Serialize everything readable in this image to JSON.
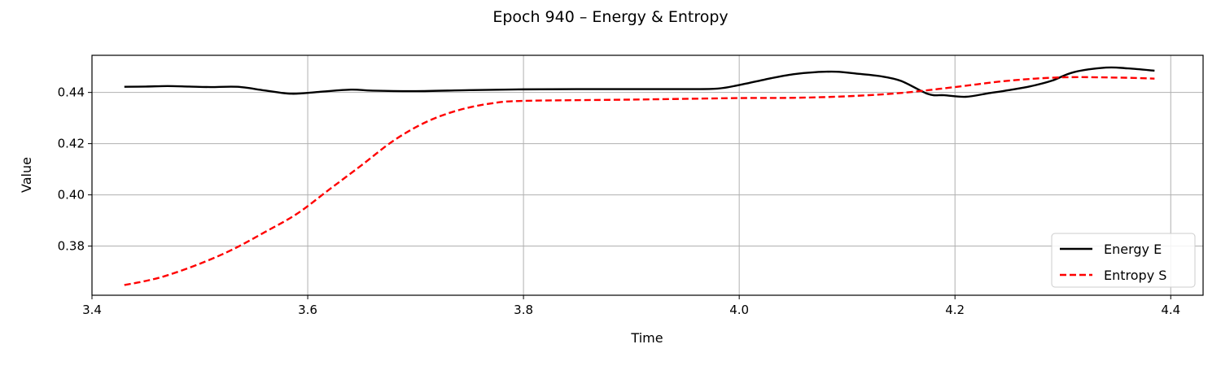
{
  "chart_data": {
    "type": "line",
    "title": "Epoch 940 – Energy & Entropy",
    "xlabel": "Time",
    "ylabel": "Value",
    "xlim": [
      3.4,
      4.43
    ],
    "ylim": [
      0.3608,
      0.4545
    ],
    "xticks": [
      3.4,
      3.6,
      3.8,
      4.0,
      4.2,
      4.4
    ],
    "xtick_labels": [
      "3.4",
      "3.6",
      "3.8",
      "4.0",
      "4.2",
      "4.4"
    ],
    "yticks": [
      0.38,
      0.4,
      0.42,
      0.44
    ],
    "ytick_labels": [
      "0.38",
      "0.40",
      "0.42",
      "0.44"
    ],
    "grid": true,
    "legend_position": "lower-right",
    "series": [
      {
        "name": "Energy E",
        "color": "#000000",
        "style": "solid",
        "x": [
          3.43,
          3.45,
          3.47,
          3.49,
          3.51,
          3.535,
          3.56,
          3.585,
          3.61,
          3.64,
          3.66,
          3.7,
          3.75,
          3.8,
          3.85,
          3.9,
          3.95,
          3.98,
          4.0,
          4.03,
          4.05,
          4.07,
          4.09,
          4.11,
          4.13,
          4.15,
          4.175,
          4.19,
          4.21,
          4.23,
          4.25,
          4.27,
          4.29,
          4.31,
          4.34,
          4.36,
          4.385
        ],
        "y": [
          0.4422,
          0.4423,
          0.4425,
          0.4423,
          0.4421,
          0.4422,
          0.4408,
          0.4395,
          0.4402,
          0.4411,
          0.4407,
          0.4405,
          0.4409,
          0.4412,
          0.4413,
          0.4413,
          0.4413,
          0.4415,
          0.4429,
          0.4456,
          0.4471,
          0.4479,
          0.4481,
          0.4473,
          0.4464,
          0.4445,
          0.4394,
          0.4389,
          0.4383,
          0.4396,
          0.4409,
          0.4424,
          0.4446,
          0.4479,
          0.4497,
          0.4494,
          0.4485
        ]
      },
      {
        "name": "Entropy S",
        "color": "#ff0000",
        "style": "dashed",
        "x": [
          3.43,
          3.45,
          3.47,
          3.5,
          3.53,
          3.56,
          3.59,
          3.62,
          3.65,
          3.68,
          3.71,
          3.74,
          3.77,
          3.8,
          3.9,
          4.0,
          4.05,
          4.1,
          4.15,
          4.2,
          4.25,
          4.3,
          4.35,
          4.385
        ],
        "y": [
          0.3648,
          0.3664,
          0.3686,
          0.3731,
          0.3786,
          0.3854,
          0.3926,
          0.4021,
          0.4116,
          0.4213,
          0.4285,
          0.4331,
          0.4357,
          0.4367,
          0.4372,
          0.4378,
          0.4379,
          0.4385,
          0.4398,
          0.4421,
          0.4446,
          0.4459,
          0.4458,
          0.4454
        ]
      }
    ]
  }
}
